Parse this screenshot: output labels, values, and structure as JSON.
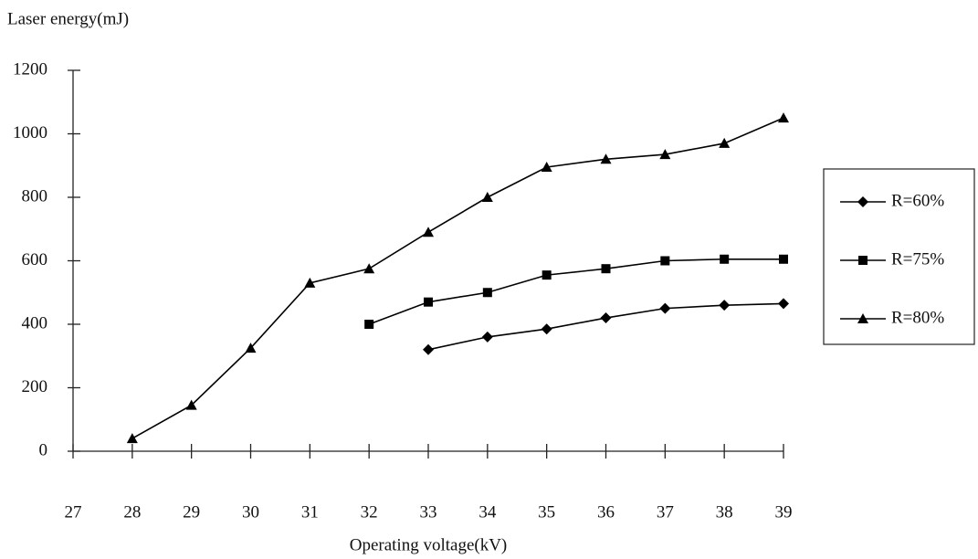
{
  "chart_data": {
    "type": "line",
    "y_label": "Laser energy(mJ)",
    "x_label": "Operating voltage(kV)",
    "x": [
      27,
      28,
      29,
      30,
      31,
      32,
      33,
      34,
      35,
      36,
      37,
      38,
      39
    ],
    "xlim": [
      27,
      39
    ],
    "xticks": [
      27,
      28,
      29,
      30,
      31,
      32,
      33,
      34,
      35,
      36,
      37,
      38,
      39
    ],
    "ylim": [
      0,
      1200
    ],
    "yticks": [
      0,
      200,
      400,
      600,
      800,
      1000,
      1200
    ],
    "grid": false,
    "legend": "right",
    "series": [
      {
        "name": "R=60%",
        "color": "#000000",
        "marker": "diamond",
        "values": [
          null,
          null,
          null,
          null,
          null,
          null,
          320,
          360,
          385,
          420,
          450,
          460,
          465
        ]
      },
      {
        "name": "R=75%",
        "color": "#000000",
        "marker": "square",
        "values": [
          null,
          null,
          null,
          null,
          null,
          400,
          470,
          500,
          555,
          575,
          600,
          605,
          605
        ]
      },
      {
        "name": "R=80%",
        "color": "#000000",
        "marker": "triangle",
        "values": [
          null,
          40,
          145,
          325,
          530,
          575,
          690,
          800,
          895,
          920,
          935,
          970,
          1050
        ]
      }
    ]
  }
}
